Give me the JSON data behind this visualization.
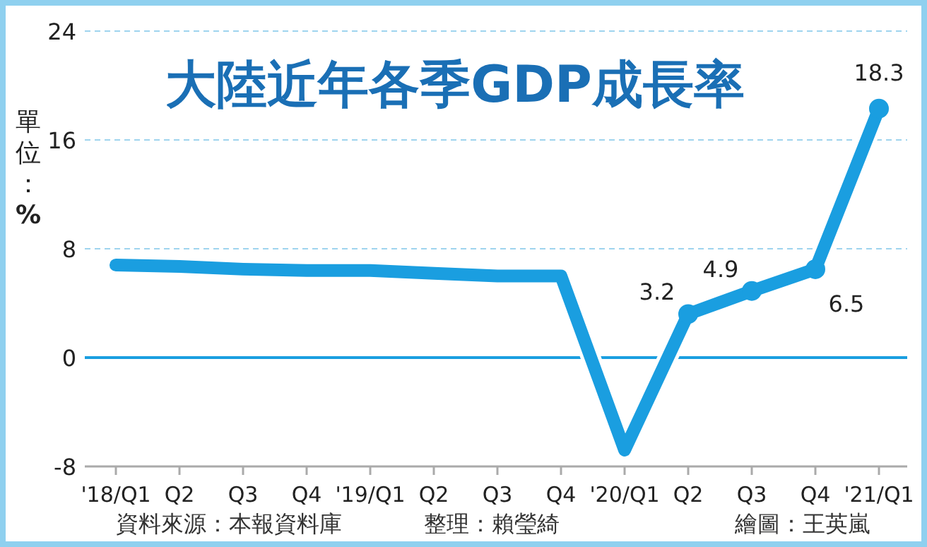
{
  "chart_data": {
    "type": "line",
    "title": "大陸近年各季GDP成長率",
    "ylabel": "單位：%",
    "categories": [
      "'18/Q1",
      "Q2",
      "Q3",
      "Q4",
      "'19/Q1",
      "Q2",
      "Q3",
      "Q4",
      "'20/Q1",
      "Q2",
      "Q3",
      "Q4",
      "'21/Q1"
    ],
    "series": [
      {
        "color": "#1a9ee0",
        "values": [
          6.8,
          6.7,
          6.5,
          6.4,
          6.4,
          6.2,
          6.0,
          6.0,
          -6.8,
          3.2,
          4.9,
          6.5,
          18.3
        ],
        "value_labels": [
          null,
          null,
          null,
          null,
          null,
          null,
          null,
          null,
          null,
          "3.2",
          "4.9",
          "6.5",
          "18.3"
        ]
      },
      {
        "type": "scatter",
        "marker": "circle",
        "color": "#1a9ee0",
        "values": [
          null,
          null,
          null,
          null,
          null,
          null,
          null,
          null,
          null,
          3.2,
          4.9,
          6.5,
          18.3
        ]
      }
    ],
    "ylim": [
      -8,
      24
    ],
    "yticks": [
      -8,
      0,
      8,
      16,
      24
    ],
    "grid": "y",
    "ref_lines": [
      {
        "axis": "y",
        "value": 0,
        "color": "#1a9ee0",
        "line_style": "solid"
      }
    ],
    "annotations": [
      "資料來源：本報資料庫",
      "整理：賴瑩綺",
      "繪圖：王英嵐"
    ]
  }
}
